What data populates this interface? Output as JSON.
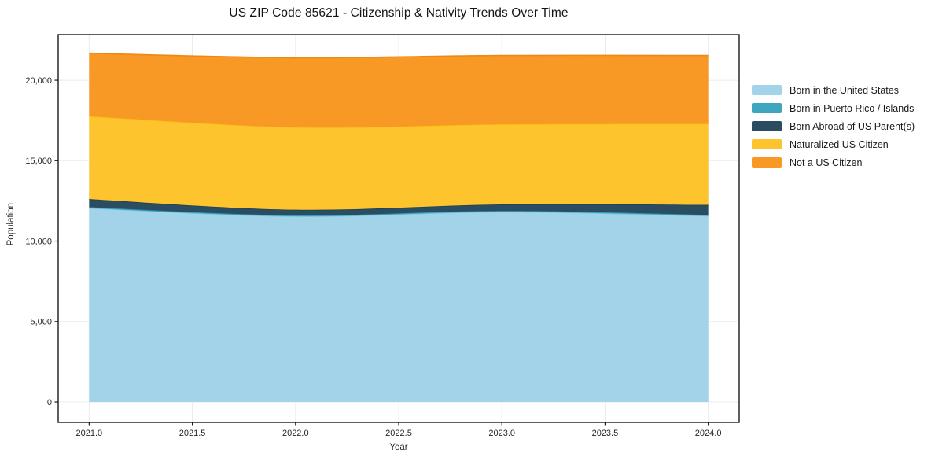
{
  "chart_data": {
    "type": "area",
    "stacked": true,
    "title": "US ZIP Code 85621 - Citizenship & Nativity Trends Over Time",
    "xlabel": "Year",
    "ylabel": "Population",
    "x": [
      2021,
      2022,
      2023,
      2024
    ],
    "series": [
      {
        "name": "Born in the United States",
        "values": [
          12050,
          11540,
          11820,
          11570
        ],
        "fill": "#a3d3e9",
        "edge": "#7ec3e0"
      },
      {
        "name": "Born in Puerto Rico / Islands",
        "values": [
          60,
          60,
          60,
          60
        ],
        "fill": "#3fa6c0",
        "edge": "#2f97b3"
      },
      {
        "name": "Born Abroad of US Parent(s)",
        "values": [
          500,
          350,
          400,
          620
        ],
        "fill": "#2a4d61",
        "edge": "#1e4156"
      },
      {
        "name": "Naturalized US Citizen",
        "values": [
          5150,
          5130,
          4980,
          5040
        ],
        "fill": "#fec42e",
        "edge": "#fbba13"
      },
      {
        "name": "Not a US Citizen",
        "values": [
          3920,
          4320,
          4280,
          4250
        ],
        "fill": "#f89825",
        "edge": "#f08714"
      }
    ],
    "xticks": {
      "values": [
        2021.0,
        2021.5,
        2022.0,
        2022.5,
        2023.0,
        2023.5,
        2024.0
      ],
      "labels": [
        "2021.0",
        "2021.5",
        "2022.0",
        "2022.5",
        "2023.0",
        "2023.5",
        "2024.0"
      ]
    },
    "yticks": {
      "values": [
        0,
        5000,
        10000,
        15000,
        20000
      ],
      "labels": [
        "0",
        "5,000",
        "10,000",
        "15,000",
        "20,000"
      ]
    },
    "xlim": [
      2020.85,
      2024.15
    ],
    "ylim": [
      -1270,
      22840
    ],
    "grid": true,
    "grid_color": "#ebebeb",
    "frame_color": "#1a1a1a",
    "tick_label_color": "#262626",
    "legend_position": "right-outside",
    "smooth": true
  }
}
